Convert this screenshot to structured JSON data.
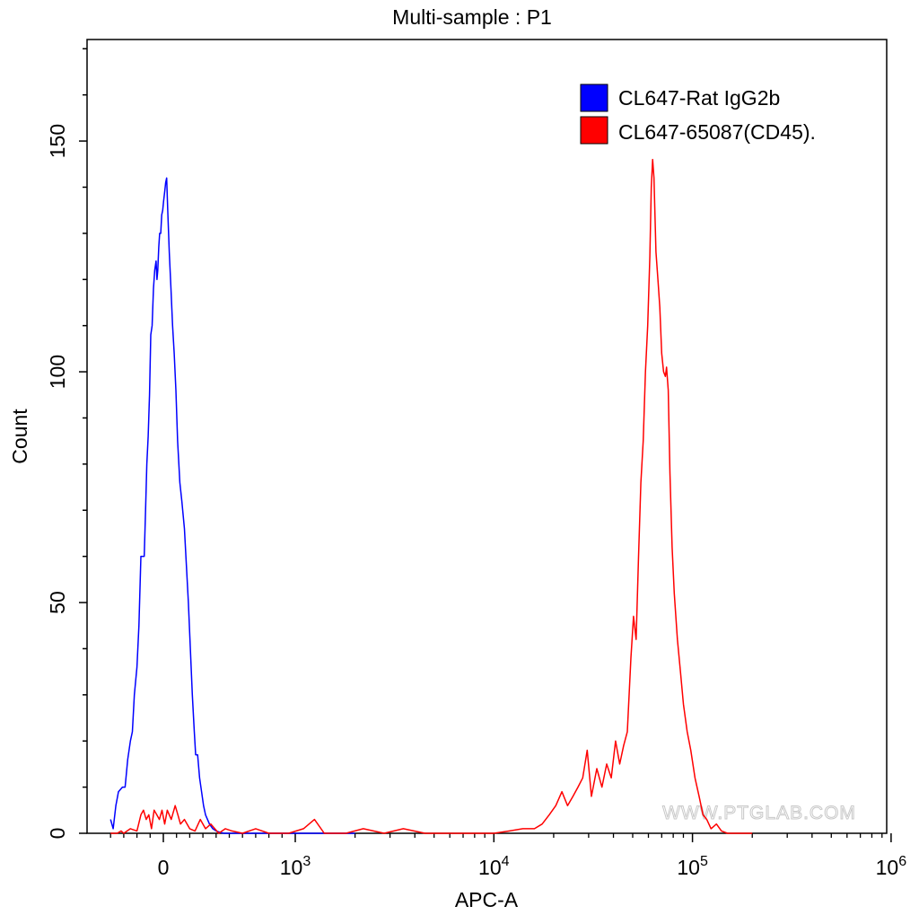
{
  "chart_data": {
    "type": "line",
    "title": "Multi-sample : P1",
    "xlabel": "APC-A",
    "ylabel": "Count",
    "watermark": "WWW.PTGLAB.COM",
    "x_scale": "biexponential",
    "xlim": [
      -400,
      1000000
    ],
    "ylim": [
      0,
      172
    ],
    "x_ticks": [
      {
        "value": 0,
        "label": "0",
        "exp": ""
      },
      {
        "value": 1000,
        "label": "10",
        "exp": "3"
      },
      {
        "value": 10000,
        "label": "10",
        "exp": "4"
      },
      {
        "value": 100000,
        "label": "10",
        "exp": "5"
      },
      {
        "value": 1000000,
        "label": "10",
        "exp": "6"
      }
    ],
    "y_ticks": [
      0,
      50,
      100,
      150
    ],
    "legend": {
      "position": "top-right",
      "items": [
        {
          "label": "CL647-Rat IgG2b",
          "color": "#0000ff"
        },
        {
          "label": "CL647-65087(CD45).",
          "color": "#ff0000"
        }
      ]
    },
    "series": [
      {
        "name": "CL647-Rat IgG2b",
        "color": "#0000ff",
        "points": [
          [
            -400,
            3
          ],
          [
            -380,
            1
          ],
          [
            -360,
            6
          ],
          [
            -340,
            9
          ],
          [
            -310,
            10
          ],
          [
            -290,
            10
          ],
          [
            -270,
            16
          ],
          [
            -250,
            20
          ],
          [
            -235,
            22
          ],
          [
            -220,
            30
          ],
          [
            -200,
            36
          ],
          [
            -185,
            45
          ],
          [
            -170,
            60
          ],
          [
            -155,
            60
          ],
          [
            -145,
            60
          ],
          [
            -135,
            70
          ],
          [
            -125,
            80
          ],
          [
            -115,
            86
          ],
          [
            -105,
            95
          ],
          [
            -95,
            108
          ],
          [
            -85,
            110
          ],
          [
            -75,
            118
          ],
          [
            -65,
            122
          ],
          [
            -55,
            124
          ],
          [
            -48,
            120
          ],
          [
            -42,
            122
          ],
          [
            -35,
            127
          ],
          [
            -28,
            130
          ],
          [
            -20,
            130
          ],
          [
            -12,
            134
          ],
          [
            -5,
            135
          ],
          [
            2,
            137
          ],
          [
            10,
            139
          ],
          [
            18,
            141
          ],
          [
            25,
            142
          ],
          [
            33,
            135
          ],
          [
            45,
            126
          ],
          [
            58,
            118
          ],
          [
            70,
            110
          ],
          [
            82,
            104
          ],
          [
            95,
            96
          ],
          [
            108,
            85
          ],
          [
            125,
            76
          ],
          [
            140,
            72
          ],
          [
            160,
            66
          ],
          [
            175,
            58
          ],
          [
            190,
            50
          ],
          [
            205,
            40
          ],
          [
            220,
            30
          ],
          [
            235,
            22
          ],
          [
            245,
            17
          ],
          [
            260,
            17
          ],
          [
            275,
            12
          ],
          [
            290,
            9
          ],
          [
            305,
            6
          ],
          [
            320,
            4
          ],
          [
            335,
            3
          ],
          [
            350,
            2
          ],
          [
            375,
            1
          ],
          [
            400,
            0.5
          ],
          [
            430,
            0.2
          ],
          [
            460,
            0
          ],
          [
            700,
            0
          ],
          [
            1400,
            0
          ],
          [
            2000,
            0
          ]
        ]
      },
      {
        "name": "CL647-65087(CD45).",
        "color": "#ff0000",
        "points": [
          [
            -400,
            0
          ],
          [
            -350,
            0
          ],
          [
            -320,
            0.5
          ],
          [
            -300,
            0
          ],
          [
            -250,
            1
          ],
          [
            -200,
            0.5
          ],
          [
            -170,
            4
          ],
          [
            -150,
            5
          ],
          [
            -130,
            3
          ],
          [
            -110,
            4
          ],
          [
            -90,
            1
          ],
          [
            -70,
            5
          ],
          [
            -50,
            4
          ],
          [
            -30,
            3
          ],
          [
            -10,
            5
          ],
          [
            10,
            2
          ],
          [
            30,
            5
          ],
          [
            60,
            3
          ],
          [
            90,
            6
          ],
          [
            110,
            4
          ],
          [
            130,
            2
          ],
          [
            160,
            3
          ],
          [
            200,
            1
          ],
          [
            240,
            0.5
          ],
          [
            280,
            3
          ],
          [
            320,
            1
          ],
          [
            360,
            2
          ],
          [
            420,
            0
          ],
          [
            470,
            1
          ],
          [
            520,
            0.5
          ],
          [
            600,
            0
          ],
          [
            700,
            1
          ],
          [
            800,
            0
          ],
          [
            950,
            0
          ],
          [
            1100,
            1
          ],
          [
            1250,
            3
          ],
          [
            1400,
            0
          ],
          [
            1800,
            0
          ],
          [
            2200,
            1
          ],
          [
            2800,
            0
          ],
          [
            3500,
            1
          ],
          [
            4500,
            0
          ],
          [
            6000,
            0
          ],
          [
            8000,
            0
          ],
          [
            10000,
            0
          ],
          [
            12000,
            0.5
          ],
          [
            14000,
            1
          ],
          [
            16000,
            1
          ],
          [
            17500,
            2
          ],
          [
            19000,
            4
          ],
          [
            20500,
            6
          ],
          [
            22000,
            9
          ],
          [
            23500,
            6
          ],
          [
            25000,
            8
          ],
          [
            26500,
            10
          ],
          [
            28000,
            12
          ],
          [
            29500,
            18
          ],
          [
            31000,
            8
          ],
          [
            33000,
            14
          ],
          [
            35000,
            10
          ],
          [
            37000,
            15
          ],
          [
            39000,
            12
          ],
          [
            41000,
            20
          ],
          [
            43000,
            15
          ],
          [
            45000,
            19
          ],
          [
            47000,
            22
          ],
          [
            49000,
            38
          ],
          [
            50500,
            47
          ],
          [
            52000,
            42
          ],
          [
            53500,
            60
          ],
          [
            55000,
            76
          ],
          [
            56500,
            85
          ],
          [
            58000,
            100
          ],
          [
            59500,
            110
          ],
          [
            61000,
            125
          ],
          [
            62000,
            140
          ],
          [
            63000,
            146
          ],
          [
            64000,
            142
          ],
          [
            65500,
            126
          ],
          [
            67000,
            120
          ],
          [
            68500,
            114
          ],
          [
            70000,
            104
          ],
          [
            71500,
            100
          ],
          [
            73000,
            99
          ],
          [
            74000,
            101
          ],
          [
            75500,
            96
          ],
          [
            77000,
            78
          ],
          [
            79000,
            62
          ],
          [
            81000,
            52
          ],
          [
            84000,
            42
          ],
          [
            87000,
            35
          ],
          [
            90000,
            28
          ],
          [
            94000,
            22
          ],
          [
            98000,
            18
          ],
          [
            103000,
            12
          ],
          [
            108000,
            8
          ],
          [
            113000,
            4
          ],
          [
            118000,
            3
          ],
          [
            124000,
            1
          ],
          [
            132000,
            2
          ],
          [
            140000,
            0.5
          ],
          [
            150000,
            0
          ],
          [
            200000,
            0
          ]
        ]
      }
    ]
  }
}
